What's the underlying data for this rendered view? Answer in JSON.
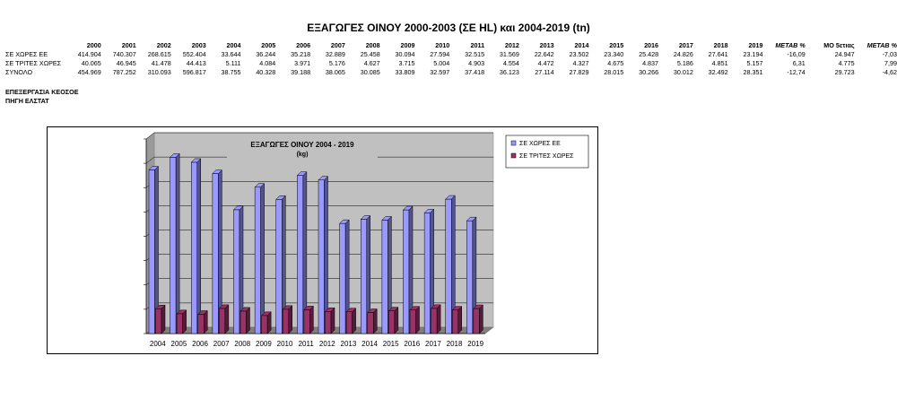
{
  "title": "ΕΞΑΓΩΓΕΣ ΟΙΝΟΥ 2000-2003 (ΣΕ HL) και 2004-2019 (tn)",
  "table": {
    "years": [
      "2000",
      "2001",
      "2002",
      "2003",
      "2004",
      "2005",
      "2006",
      "2007",
      "2008",
      "2009",
      "2010",
      "2011",
      "2012",
      "2013",
      "2014",
      "2015",
      "2016",
      "2017",
      "2018",
      "2019"
    ],
    "extra_headers": [
      "METAB %",
      "ΜΟ 5ετιας",
      "METAB %"
    ],
    "rows": [
      {
        "label": "ΣΕ ΧΩΡΕΣ ΕΕ",
        "values": [
          "414.904",
          "740.307",
          "268.615",
          "552.404",
          "33.644",
          "36.244",
          "35.218",
          "32.889",
          "25.458",
          "30.094",
          "27.594",
          "32.515",
          "31.569",
          "22.642",
          "23.502",
          "23.340",
          "25.428",
          "24.826",
          "27.641",
          "23.194"
        ],
        "extra": [
          "-16,09",
          "24.947",
          "-7,03"
        ]
      },
      {
        "label": "ΣΕ ΤΡΙΤΕΣ ΧΩΡΕΣ",
        "values": [
          "40.065",
          "46.945",
          "41.478",
          "44.413",
          "5.111",
          "4.084",
          "3.971",
          "5.176",
          "4.627",
          "3.715",
          "5.004",
          "4.903",
          "4.554",
          "4.472",
          "4.327",
          "4.675",
          "4.837",
          "5.186",
          "4.851",
          "5.157"
        ],
        "extra": [
          "6,31",
          "4.775",
          "7,99"
        ]
      },
      {
        "label": "ΣΥΝΟΛΟ",
        "values": [
          "454.969",
          "787.252",
          "310.093",
          "596.817",
          "38.755",
          "40.328",
          "39.188",
          "38.065",
          "30.085",
          "33.809",
          "32.597",
          "37.418",
          "36.123",
          "27.114",
          "27.829",
          "28.015",
          "30.266",
          "30.012",
          "32.492",
          "28.351"
        ],
        "extra": [
          "-12,74",
          "29.723",
          "-4,62"
        ]
      }
    ]
  },
  "notes": [
    "ΕΠΕΞΕΡΓΑΣΙΑ ΚΕΟΣΟΕ",
    "ΠΗΓΗ ΕΛΣΤΑΤ"
  ],
  "chart_data": {
    "type": "bar",
    "title": "ΕΞΑΓΩΓΕΣ ΟΙΝΟΥ 2004 - 2019",
    "subtitle": "(kg)",
    "categories": [
      "2004",
      "2005",
      "2006",
      "2007",
      "2008",
      "2009",
      "2010",
      "2011",
      "2012",
      "2013",
      "2014",
      "2015",
      "2016",
      "2017",
      "2018",
      "2019"
    ],
    "series": [
      {
        "name": "ΣΕ ΧΩΡΕΣ ΕΕ",
        "values": [
          33644,
          36244,
          35218,
          32889,
          25458,
          30094,
          27594,
          32515,
          31569,
          22642,
          23502,
          23340,
          25428,
          24826,
          27641,
          23194
        ],
        "color": "#9999ff"
      },
      {
        "name": "ΣΕ ΤΡΙΤΕΣ ΧΩΡΕΣ",
        "values": [
          5111,
          4084,
          3971,
          5176,
          4627,
          3715,
          5004,
          4903,
          4554,
          4472,
          4327,
          4675,
          4837,
          5186,
          4851,
          5157
        ],
        "color": "#993366"
      }
    ],
    "ylim": [
      0,
      40000
    ],
    "grid": true,
    "legend": "top-right",
    "wall_color": "#c0c0c0"
  }
}
